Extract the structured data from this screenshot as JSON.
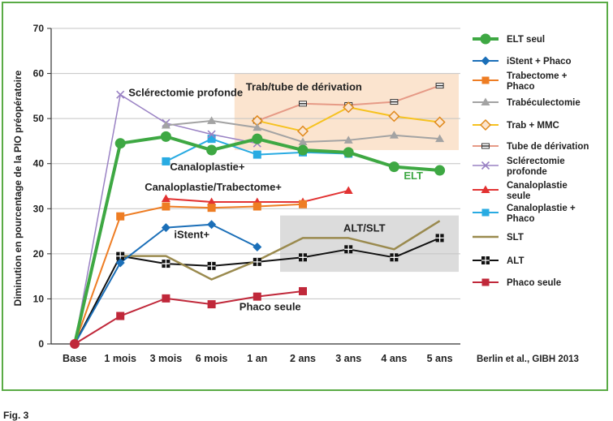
{
  "chart_data": {
    "type": "line",
    "categories": [
      "Base",
      "1 mois",
      "3 mois",
      "6 mois",
      "1 an",
      "2 ans",
      "3 ans",
      "4 ans",
      "5 ans"
    ],
    "ylabel": "Diminution en pourcentage de la PIO préopératoire",
    "xlabel": "",
    "ylim": [
      0,
      70
    ],
    "yticks": [
      0,
      10,
      20,
      30,
      40,
      50,
      60,
      70
    ],
    "grid": true,
    "legend_position": "right",
    "source_note": "Berlin et al., GIBH 2013",
    "regions": [
      {
        "label": "Trab/tube de dérivation",
        "x_from": "1 an",
        "x_to": "5 ans",
        "y_from": 43,
        "y_to": 60,
        "color": "#fbe4cf"
      },
      {
        "label": "ALT/SLT",
        "x_from": "2 ans",
        "x_to": "5 ans",
        "y_from": 16,
        "y_to": 28.5,
        "color": "#dcdcdc"
      }
    ],
    "annotations": [
      {
        "text": "Sclérectomie profonde",
        "x": "1 mois",
        "y": 55
      },
      {
        "text": "Canaloplastie+",
        "x": "3 mois",
        "y": 38.5
      },
      {
        "text": "Canaloplastie/Trabectome+",
        "x": "1 mois",
        "y": 34
      },
      {
        "text": "iStent+",
        "x": "3 mois",
        "y": 23.5
      },
      {
        "text": "Phaco seule",
        "x": "1 an",
        "y": 7.5
      },
      {
        "text": "ELT",
        "x": "4 ans",
        "y": 36.5
      }
    ],
    "series": [
      {
        "name": "ELT seul",
        "color": "#3ea843",
        "marker": "circle",
        "width": 4,
        "points": [
          [
            "Base",
            0
          ],
          [
            "1 mois",
            44.5
          ],
          [
            "3 mois",
            46
          ],
          [
            "6 mois",
            43
          ],
          [
            "1 an",
            45.5
          ],
          [
            "2 ans",
            43
          ],
          [
            "3 ans",
            42.5
          ],
          [
            "4 ans",
            39.3
          ],
          [
            "5 ans",
            38.5
          ]
        ]
      },
      {
        "name": "iStent + Phaco",
        "color": "#1b6fb8",
        "marker": "diamond",
        "width": 2,
        "points": [
          [
            "Base",
            0
          ],
          [
            "1 mois",
            18
          ],
          [
            "3 mois",
            25.8
          ],
          [
            "6 mois",
            26.5
          ],
          [
            "1 an",
            21.5
          ]
        ]
      },
      {
        "name": "Trabectome + Phaco",
        "color": "#ee7d24",
        "marker": "square",
        "width": 2,
        "points": [
          [
            "Base",
            0
          ],
          [
            "1 mois",
            28.3
          ],
          [
            "3 mois",
            30.5
          ],
          [
            "6 mois",
            30.2
          ],
          [
            "1 an",
            30.5
          ],
          [
            "2 ans",
            31
          ]
        ]
      },
      {
        "name": "Trabéculectomie",
        "color": "#a3a3a3",
        "marker": "triangle",
        "width": 2,
        "points": [
          [
            "3 mois",
            48.5
          ],
          [
            "6 mois",
            49.5
          ],
          [
            "1 an",
            48
          ],
          [
            "2 ans",
            44.8
          ],
          [
            "3 ans",
            45.2
          ],
          [
            "4 ans",
            46.3
          ],
          [
            "5 ans",
            45.5
          ]
        ]
      },
      {
        "name": "Trab + MMC",
        "color": "#f6c21f",
        "marker": "diamond-open",
        "width": 2,
        "points": [
          [
            "1 an",
            49.5
          ],
          [
            "2 ans",
            47.2
          ],
          [
            "3 ans",
            52.5
          ],
          [
            "4 ans",
            50.5
          ],
          [
            "5 ans",
            49.2
          ]
        ]
      },
      {
        "name": "Tube de dérivation",
        "color": "#e69a86",
        "marker": "dash-box",
        "width": 2,
        "points": [
          [
            "1 an",
            49.5
          ],
          [
            "2 ans",
            53.3
          ],
          [
            "3 ans",
            53
          ],
          [
            "4 ans",
            53.7
          ],
          [
            "5 ans",
            57.3
          ]
        ]
      },
      {
        "name": "Sclérectomie profonde",
        "color": "#9a82c4",
        "marker": "x",
        "width": 1.5,
        "points": [
          [
            "Base",
            0
          ],
          [
            "1 mois",
            55.3
          ],
          [
            "3 mois",
            49
          ],
          [
            "6 mois",
            46.5
          ],
          [
            "1 an",
            44.5
          ]
        ]
      },
      {
        "name": "Canaloplastie seule",
        "color": "#e23232",
        "marker": "triangle-filled",
        "width": 2,
        "points": [
          [
            "3 mois",
            32.2
          ],
          [
            "6 mois",
            31.5
          ],
          [
            "1 an",
            31.5
          ],
          [
            "2 ans",
            31.5
          ],
          [
            "3 ans",
            34
          ]
        ]
      },
      {
        "name": "Canaloplastie + Phaco",
        "color": "#29abe2",
        "marker": "square",
        "width": 2,
        "points": [
          [
            "3 mois",
            40.5
          ],
          [
            "6 mois",
            45.5
          ],
          [
            "1 an",
            42
          ],
          [
            "2 ans",
            42.5
          ],
          [
            "3 ans",
            42.2
          ]
        ]
      },
      {
        "name": "SLT",
        "color": "#9a8a4e",
        "marker": "none",
        "width": 2.5,
        "points": [
          [
            "1 mois",
            19.5
          ],
          [
            "3 mois",
            19.5
          ],
          [
            "6 mois",
            14.3
          ],
          [
            "1 an",
            18.5
          ],
          [
            "2 ans",
            23.5
          ],
          [
            "3 ans",
            23.5
          ],
          [
            "4 ans",
            21
          ],
          [
            "5 ans",
            27.3
          ]
        ]
      },
      {
        "name": "ALT",
        "color": "#111111",
        "marker": "plus-square",
        "width": 2,
        "points": [
          [
            "Base",
            0
          ],
          [
            "1 mois",
            19.5
          ],
          [
            "3 mois",
            17.8
          ],
          [
            "6 mois",
            17.3
          ],
          [
            "1 an",
            18.2
          ],
          [
            "2 ans",
            19.2
          ],
          [
            "3 ans",
            21
          ],
          [
            "4 ans",
            19.2
          ],
          [
            "5 ans",
            23.5
          ]
        ]
      },
      {
        "name": "Phaco seule",
        "color": "#c0283a",
        "marker": "square",
        "width": 2,
        "points": [
          [
            "Base",
            0
          ],
          [
            "1 mois",
            6.2
          ],
          [
            "3 mois",
            10.1
          ],
          [
            "6 mois",
            8.8
          ],
          [
            "1 an",
            10.5
          ],
          [
            "2 ans",
            11.7
          ]
        ]
      }
    ]
  },
  "figure_caption": "Fig. 3"
}
